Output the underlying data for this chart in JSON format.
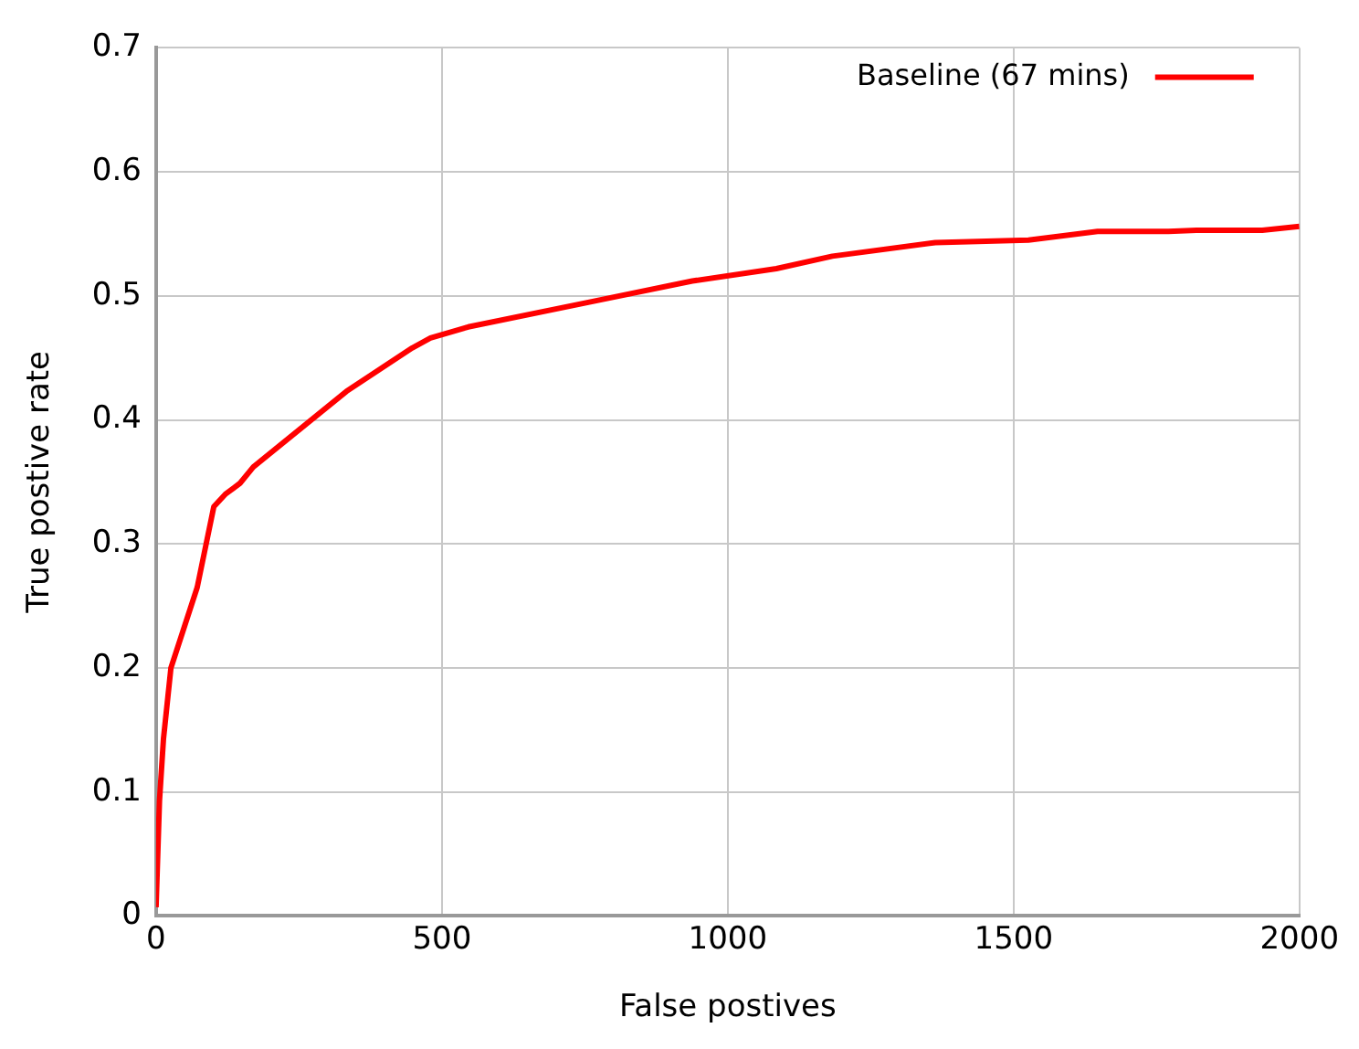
{
  "chart_data": {
    "type": "line",
    "xlabel": "False postives",
    "ylabel": "True postive rate",
    "xlim": [
      0,
      2000
    ],
    "xticks": [
      0,
      500,
      1000,
      1500,
      2000
    ],
    "ylim": [
      0,
      0.7
    ],
    "yticks": [
      0,
      0.1,
      0.2,
      0.3,
      0.4,
      0.5,
      0.6,
      0.7
    ],
    "grid": true,
    "legend": "top right",
    "marker": "none",
    "line_style": "solid",
    "series": [
      {
        "name": "Baseline (67 mins)",
        "color": "#ff0000",
        "x": [
          0,
          6,
          13,
          26,
          72,
          101,
          121,
          147,
          170,
          333,
          448,
          480,
          546,
          758,
          938,
          1085,
          1183,
          1363,
          1526,
          1647,
          1771,
          1820,
          1935,
          2000
        ],
        "values": [
          0.007,
          0.093,
          0.143,
          0.2,
          0.265,
          0.33,
          0.34,
          0.349,
          0.362,
          0.423,
          0.458,
          0.466,
          0.475,
          0.495,
          0.512,
          0.522,
          0.532,
          0.543,
          0.545,
          0.552,
          0.552,
          0.553,
          0.553,
          0.556
        ]
      }
    ]
  }
}
